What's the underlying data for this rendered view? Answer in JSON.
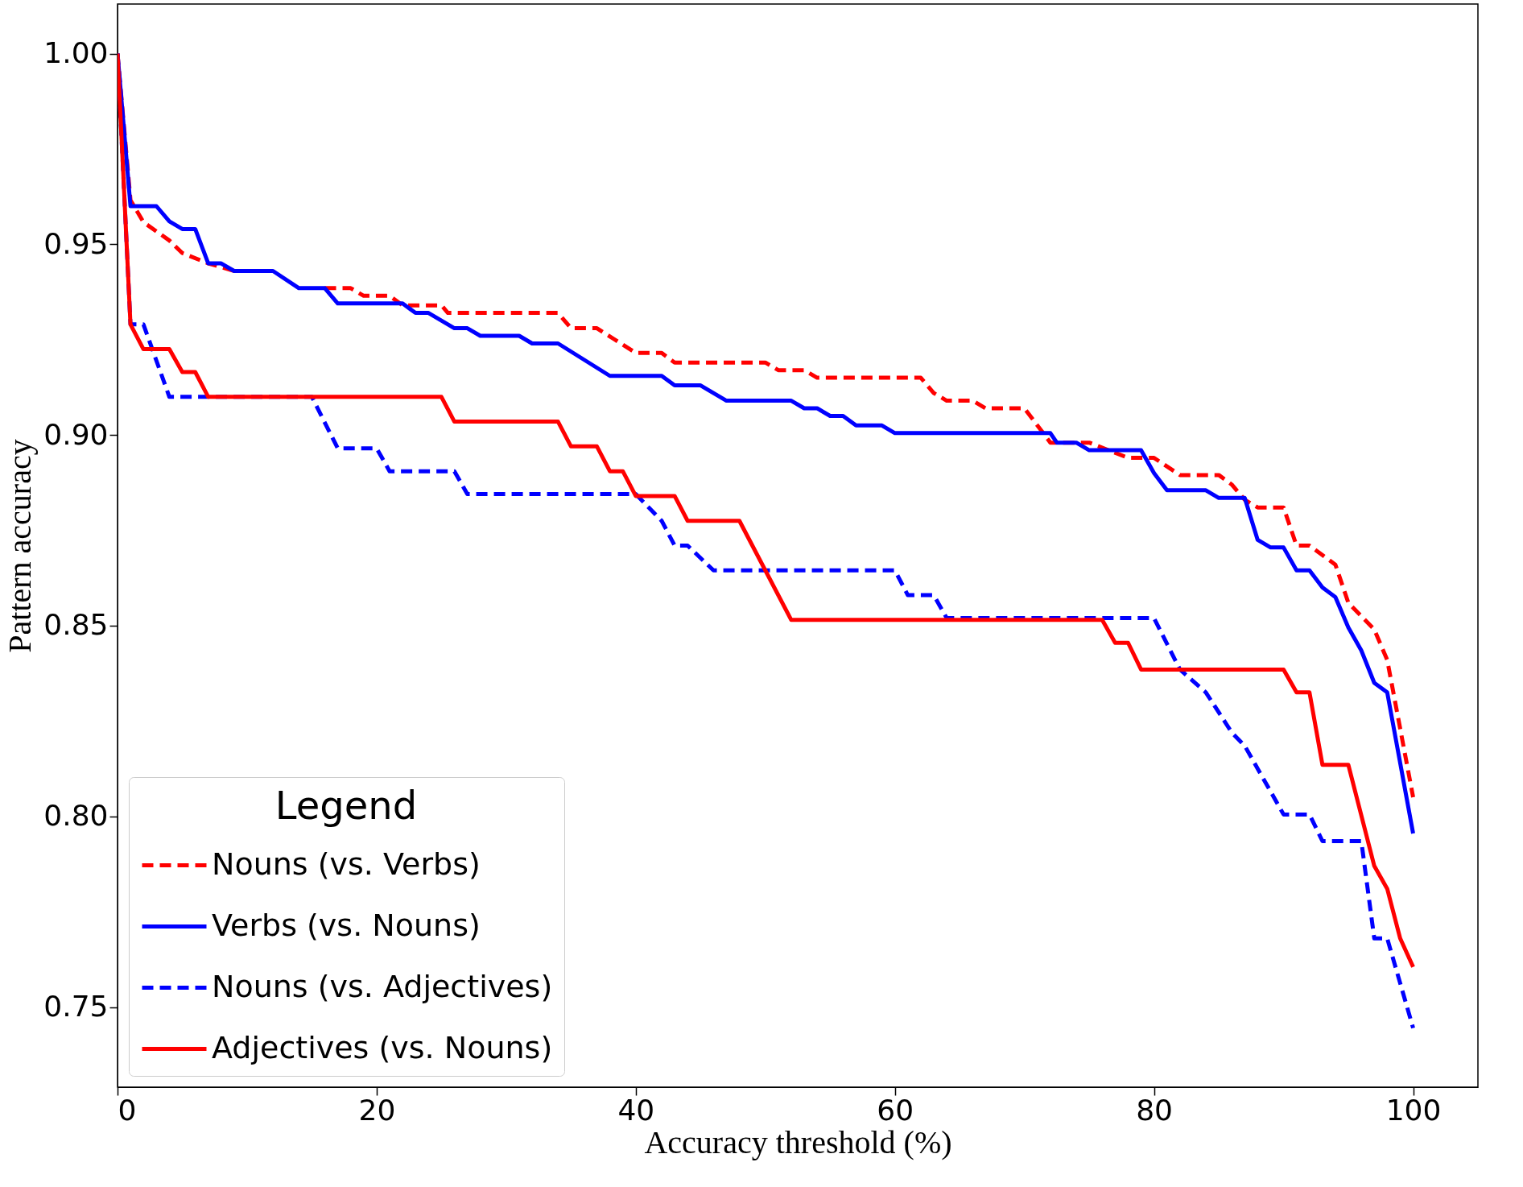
{
  "chart_data": {
    "type": "line",
    "xlabel": "Accuracy threshold (%)",
    "ylabel": "Pattern accuracy",
    "legend_title": "Legend",
    "legend": "bottom left",
    "grid": false,
    "marker": "none",
    "xlim": [
      0,
      105
    ],
    "xticks": [
      0,
      20,
      40,
      60,
      80,
      100
    ],
    "ylim": [
      0.729,
      1.013
    ],
    "yticks": [
      {
        "value": 0.75,
        "label": "0.75"
      },
      {
        "value": 0.8,
        "label": "0.80"
      },
      {
        "value": 0.85,
        "label": "0.85"
      },
      {
        "value": 0.9,
        "label": "0.90"
      },
      {
        "value": 0.95,
        "label": "0.95"
      },
      {
        "value": 1.0,
        "label": "1.00"
      }
    ],
    "series": [
      {
        "name": "Nouns (vs. Verbs)",
        "color": "#ff0000",
        "line_style": "dashed",
        "x": [
          0,
          1,
          2,
          4,
          5,
          7,
          8,
          9,
          12,
          14,
          16,
          18,
          19,
          21,
          22,
          25,
          25.5,
          34,
          35,
          37,
          40,
          42,
          43,
          50,
          51,
          53,
          54,
          62,
          63,
          64,
          66,
          67,
          70,
          72,
          75,
          78,
          80,
          82,
          85,
          86,
          87,
          88,
          90,
          91,
          92,
          94,
          95,
          97,
          98,
          99,
          100
        ],
        "values": [
          1.0,
          0.9616,
          0.9558,
          0.951,
          0.9477,
          0.945,
          0.944,
          0.943,
          null,
          null,
          0.9385,
          0.9385,
          0.9365,
          0.9365,
          0.934,
          0.934,
          0.932,
          0.932,
          0.928,
          0.928,
          0.9215,
          0.9215,
          0.919,
          0.919,
          0.917,
          0.917,
          0.915,
          0.915,
          0.911,
          0.909,
          0.909,
          0.907,
          0.907,
          0.898,
          0.898,
          0.894,
          0.894,
          0.8895,
          0.8895,
          0.887,
          0.883,
          0.881,
          0.881,
          0.871,
          0.871,
          0.866,
          0.856,
          0.849,
          0.841,
          0.823,
          0.805
        ]
      },
      {
        "name": "Verbs (vs. Nouns)",
        "color": "#0000ff",
        "line_style": "solid",
        "x": [
          0,
          1,
          3,
          4,
          5,
          6,
          7,
          8,
          9,
          12,
          14,
          16,
          17,
          22,
          23,
          24,
          26,
          27,
          28,
          31,
          32,
          34,
          38,
          42,
          43,
          45,
          47,
          52,
          53,
          54,
          55,
          56,
          57,
          59,
          60,
          72,
          72.5,
          74,
          75,
          79,
          80,
          81,
          84,
          85,
          87,
          88,
          89,
          90,
          91,
          92,
          93,
          94,
          95,
          96,
          97,
          98,
          100
        ],
        "values": [
          1.0,
          0.96,
          0.96,
          0.956,
          0.954,
          0.954,
          0.945,
          0.945,
          0.943,
          0.943,
          0.9385,
          0.9385,
          0.9345,
          0.9345,
          0.932,
          0.932,
          0.928,
          0.928,
          0.926,
          0.926,
          0.924,
          0.924,
          0.9155,
          0.9155,
          0.913,
          0.913,
          0.909,
          0.909,
          0.907,
          0.907,
          0.905,
          0.905,
          0.9025,
          0.9025,
          0.9005,
          0.9005,
          0.898,
          0.898,
          0.896,
          0.896,
          0.89,
          0.8855,
          0.8855,
          0.8835,
          0.8835,
          0.8725,
          0.8705,
          0.8705,
          0.8645,
          0.8645,
          0.86,
          0.8575,
          0.8495,
          0.8435,
          0.835,
          0.8325,
          0.7955
        ]
      },
      {
        "name": "Nouns (vs. Adjectives)",
        "color": "#0000ff",
        "line_style": "dashed",
        "x": [
          0,
          1,
          2,
          4,
          7,
          15,
          17,
          20,
          21,
          26,
          27,
          40,
          42,
          43,
          44,
          46,
          60,
          61,
          63,
          64,
          80,
          82,
          84,
          86,
          87,
          90,
          92,
          93,
          96,
          97,
          98,
          100
        ],
        "values": [
          1.0,
          0.929,
          0.929,
          0.91,
          0.91,
          0.91,
          0.8965,
          0.8965,
          0.8905,
          0.8905,
          0.8845,
          0.8845,
          0.8775,
          0.871,
          0.871,
          0.8645,
          0.8645,
          0.858,
          0.858,
          0.852,
          0.852,
          0.8385,
          0.8325,
          0.822,
          0.8185,
          0.8005,
          0.8005,
          0.7935,
          0.7935,
          0.768,
          0.768,
          0.7445
        ]
      },
      {
        "name": "Adjectives (vs. Nouns)",
        "color": "#ff0000",
        "line_style": "solid",
        "x": [
          0,
          1,
          2,
          4,
          5,
          6,
          7,
          25,
          26,
          34,
          35,
          37,
          38,
          39,
          40,
          43,
          44,
          48,
          52,
          76,
          77,
          78,
          79,
          90,
          91,
          92,
          93,
          95,
          97,
          98,
          99,
          100
        ],
        "values": [
          1.0,
          0.929,
          0.9225,
          0.9225,
          0.9165,
          0.9165,
          0.91,
          0.91,
          0.9035,
          0.9035,
          0.897,
          0.897,
          0.8905,
          0.8905,
          0.884,
          0.884,
          0.8775,
          0.8775,
          0.8515,
          0.8515,
          0.8455,
          0.8455,
          0.8385,
          0.8385,
          0.8325,
          0.8325,
          0.8135,
          0.8135,
          0.787,
          0.781,
          0.768,
          0.7605
        ]
      }
    ]
  }
}
